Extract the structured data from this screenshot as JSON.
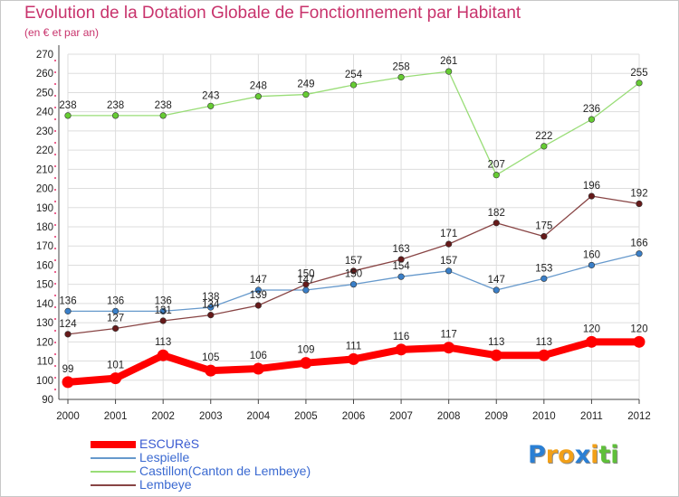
{
  "title": "Evolution de la Dotation Globale de Fonctionnement par Habitant",
  "subtitle": "(en € et par an)",
  "colors": {
    "title": "#c8336c",
    "grid": "#dddddd",
    "axis": "#444444",
    "axis_dots": "#e6306c"
  },
  "chart_data": {
    "type": "line",
    "title": "Evolution de la Dotation Globale de Fonctionnement par Habitant",
    "subtitle": "(en € et par an)",
    "xlabel": "",
    "ylabel": "",
    "x": [
      "2000",
      "2001",
      "2002",
      "2003",
      "2004",
      "2005",
      "2006",
      "2007",
      "2008",
      "2009",
      "2010",
      "2011",
      "2012"
    ],
    "ylim": [
      90,
      270
    ],
    "yticks": [
      90,
      100,
      110,
      120,
      130,
      140,
      150,
      160,
      170,
      180,
      190,
      200,
      210,
      220,
      230,
      240,
      250,
      260,
      270
    ],
    "grid": true,
    "legend": "bottom-left",
    "series": [
      {
        "name": "ESCURèS",
        "color": "#ff0000",
        "marker_color": "#dd0000",
        "width": 8,
        "values": [
          99,
          101,
          113,
          105,
          106,
          109,
          111,
          116,
          117,
          113,
          113,
          120,
          120
        ]
      },
      {
        "name": "Lespielle",
        "color": "#6699cc",
        "marker_color": "#3a7fc8",
        "width": 1.3,
        "values": [
          136,
          136,
          136,
          138,
          147,
          147,
          150,
          154,
          157,
          147,
          153,
          160,
          166
        ]
      },
      {
        "name": "Castillon(Canton de Lembeye)",
        "color": "#99dd77",
        "marker_color": "#66cc33",
        "width": 1.3,
        "values": [
          238,
          238,
          238,
          243,
          248,
          249,
          254,
          258,
          261,
          207,
          222,
          236,
          255
        ]
      },
      {
        "name": "Lembeye",
        "color": "#884444",
        "marker_color": "#661a1a",
        "width": 1.3,
        "values": [
          124,
          127,
          131,
          134,
          139,
          150,
          157,
          163,
          171,
          182,
          175,
          196,
          192
        ]
      }
    ]
  },
  "logo": {
    "letters": [
      {
        "ch": "P",
        "color": "#2a7fd4"
      },
      {
        "ch": "r",
        "color": "#f2a018"
      },
      {
        "ch": "o",
        "color": "#f2a018"
      },
      {
        "ch": "x",
        "color": "#2a7fd4"
      },
      {
        "ch": "i",
        "color": "#f2a018"
      },
      {
        "ch": "t",
        "color": "#5fbf3a"
      },
      {
        "ch": "i",
        "color": "#5fbf3a"
      }
    ]
  }
}
